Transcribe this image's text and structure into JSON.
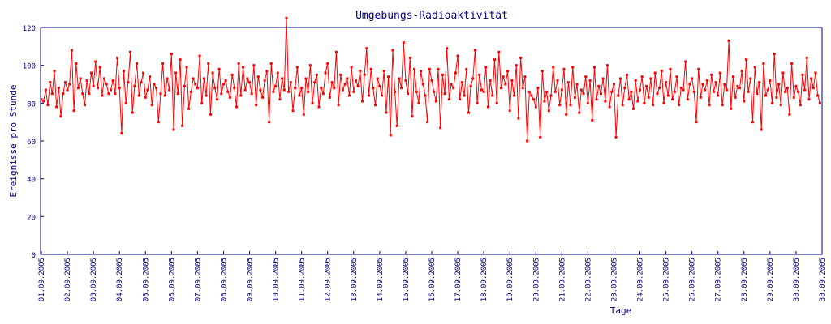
{
  "chart_data": {
    "type": "line",
    "title": "Umgebungs-Radioaktivität",
    "xlabel": "Tage",
    "ylabel": "Ereignisse pro Stunde",
    "ylim": [
      0,
      120
    ],
    "yticks": [
      0,
      20,
      40,
      60,
      80,
      100,
      120
    ],
    "xticks": [
      "01.09.2005",
      "02.09.2005",
      "03.09.2005",
      "04.09.2005",
      "05.09.2005",
      "06.09.2005",
      "07.09.2005",
      "08.09.2005",
      "09.09.2005",
      "10.09.2005",
      "11.09.2005",
      "12.09.2005",
      "13.09.2005",
      "14.09.2005",
      "15.09.2005",
      "16.09.2005",
      "17.09.2005",
      "18.09.2005",
      "19.09.2005",
      "20.09.2005",
      "21.09.2005",
      "22.09.2005",
      "23.09.2005",
      "24.09.2005",
      "25.09.2005",
      "26.09.2005",
      "27.09.2005",
      "28.09.2005",
      "29.09.2005",
      "30.09.2005",
      "30.09.2005"
    ],
    "xlim_days": [
      0,
      30
    ],
    "grid": false,
    "colors": {
      "axis": "#000080",
      "series": "#ff0000"
    },
    "series": [
      {
        "name": "Ereignisse pro Stunde",
        "sampling_hours": 2,
        "values": [
          82,
          81,
          87,
          79,
          91,
          85,
          97,
          78,
          88,
          73,
          85,
          91,
          87,
          90,
          108,
          76,
          101,
          88,
          93,
          85,
          79,
          92,
          85,
          96,
          89,
          102,
          88,
          99,
          84,
          93,
          90,
          85,
          87,
          92,
          85,
          104,
          88,
          64,
          97,
          80,
          91,
          107,
          75,
          89,
          101,
          84,
          91,
          96,
          83,
          87,
          94,
          79,
          90,
          88,
          70,
          85,
          101,
          84,
          93,
          87,
          106,
          66,
          96,
          85,
          103,
          68,
          89,
          99,
          77,
          86,
          93,
          90,
          88,
          105,
          80,
          93,
          84,
          101,
          74,
          96,
          88,
          82,
          98,
          85,
          90,
          92,
          86,
          83,
          95,
          88,
          78,
          101,
          84,
          99,
          87,
          93,
          91,
          85,
          100,
          79,
          94,
          87,
          83,
          92,
          97,
          70,
          101,
          86,
          89,
          96,
          82,
          93,
          87,
          125,
          86,
          91,
          76,
          88,
          99,
          84,
          88,
          74,
          93,
          86,
          100,
          80,
          91,
          95,
          78,
          88,
          85,
          96,
          101,
          83,
          91,
          88,
          107,
          79,
          95,
          87,
          90,
          93,
          84,
          99,
          86,
          92,
          89,
          97,
          81,
          95,
          109,
          84,
          98,
          88,
          79,
          93,
          89,
          84,
          97,
          75,
          94,
          63,
          108,
          86,
          68,
          93,
          88,
          112,
          92,
          85,
          104,
          73,
          98,
          86,
          80,
          97,
          90,
          84,
          70,
          98,
          92,
          86,
          81,
          98,
          67,
          95,
          85,
          109,
          82,
          90,
          88,
          96,
          105,
          82,
          91,
          84,
          98,
          75,
          89,
          93,
          108,
          80,
          95,
          87,
          86,
          99,
          78,
          92,
          84,
          103,
          80,
          107,
          88,
          94,
          90,
          97,
          76,
          92,
          84,
          100,
          72,
          104,
          88,
          94,
          60,
          86,
          84,
          82,
          78,
          88,
          62,
          97,
          81,
          86,
          76,
          84,
          99,
          86,
          92,
          79,
          87,
          98,
          74,
          91,
          79,
          99,
          83,
          90,
          75,
          87,
          85,
          94,
          80,
          92,
          71,
          99,
          82,
          89,
          85,
          93,
          81,
          100,
          78,
          86,
          90,
          62,
          84,
          93,
          79,
          88,
          95,
          82,
          86,
          77,
          92,
          81,
          87,
          94,
          80,
          89,
          83,
          93,
          79,
          96,
          85,
          88,
          97,
          80,
          91,
          84,
          98,
          82,
          86,
          94,
          79,
          88,
          87,
          102,
          82,
          90,
          93,
          86,
          70,
          98,
          83,
          90,
          87,
          92,
          79,
          95,
          86,
          91,
          84,
          96,
          79,
          90,
          87,
          113,
          77,
          94,
          83,
          89,
          88,
          97,
          81,
          103,
          86,
          93,
          70,
          99,
          85,
          91,
          66,
          101,
          84,
          87,
          92,
          80,
          106,
          83,
          90,
          79,
          96,
          86,
          88,
          74,
          101,
          83,
          89,
          86,
          79,
          95,
          87,
          104,
          82,
          93,
          88,
          96,
          84,
          80
        ]
      }
    ]
  }
}
